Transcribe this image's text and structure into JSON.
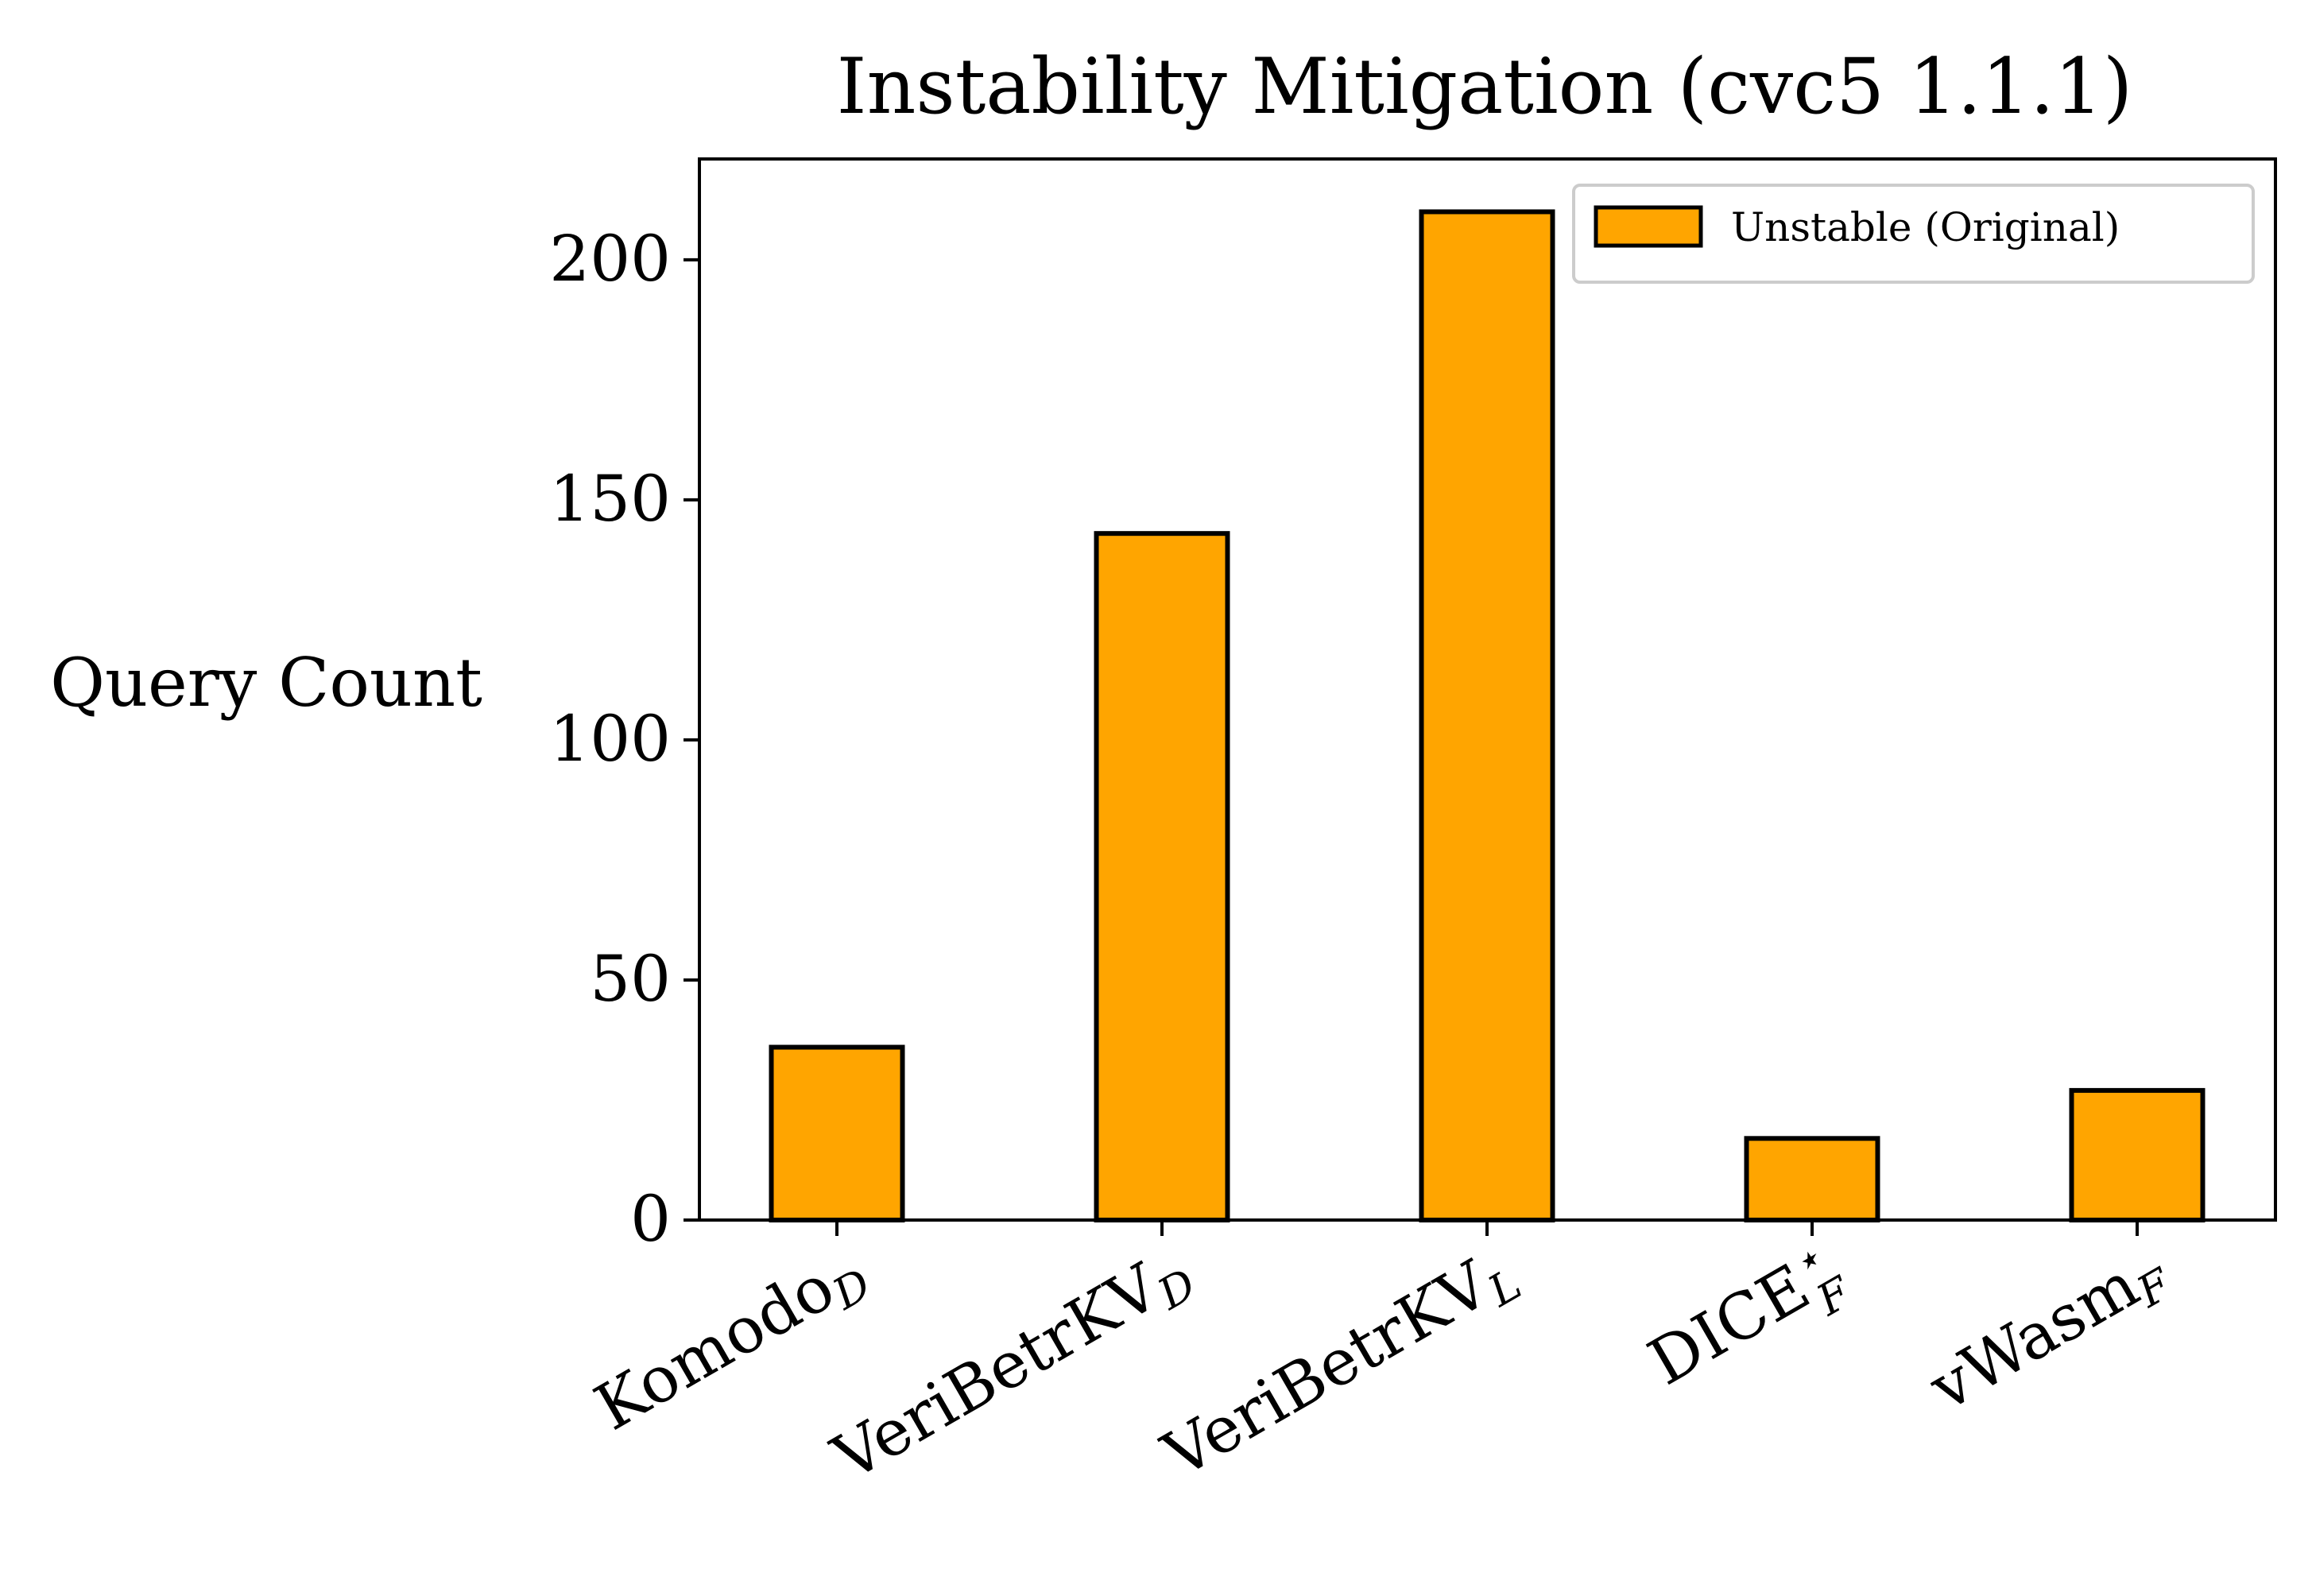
{
  "chart_data": {
    "type": "bar",
    "title": "Instability Mitigation (cvc5 1.1.1)",
    "xlabel": "",
    "ylabel": "Query Count",
    "ylim": [
      0,
      221
    ],
    "yticks": [
      0,
      50,
      100,
      150,
      200
    ],
    "categories": [
      {
        "base": "Komodo",
        "sub": "D",
        "sup": ""
      },
      {
        "base": "VeriBetrKV",
        "sub": "D",
        "sup": ""
      },
      {
        "base": "VeriBetrKV",
        "sub": "L",
        "sup": ""
      },
      {
        "base": "DICE",
        "sub": "F",
        "sup": "⋆"
      },
      {
        "base": "vWasm",
        "sub": "F",
        "sup": ""
      }
    ],
    "series": [
      {
        "name": "Unstable (Original)",
        "values": [
          36,
          143,
          210,
          17,
          27
        ]
      }
    ],
    "legend_position": "top-right",
    "grid": false,
    "xtick_rotation_deg": -30,
    "colors": {
      "bar_fill": "#ffa500",
      "bar_edge": "#000000",
      "axis": "#000000"
    }
  }
}
